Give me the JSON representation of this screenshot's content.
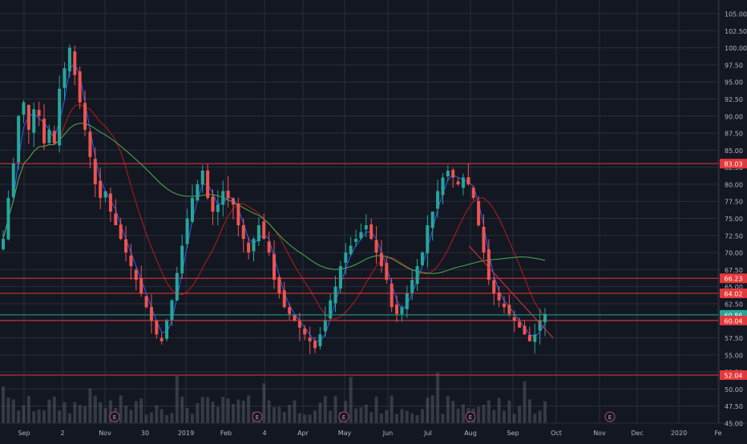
{
  "colors": {
    "background": "#131722",
    "grid": "#2a2e39",
    "axis_text": "#b2b5be",
    "up": "#26a69a",
    "down": "#ef5350",
    "hline": "#e5383b",
    "teal_line": "#26a69a",
    "ma_short": "#2962ff",
    "ma_mid": "#b71c1c",
    "ma_long": "#4caf50",
    "volume": "#787b86"
  },
  "chart_data": {
    "type": "candlestick",
    "instrument": "stock",
    "period": "2018-09 to 2019-09 (daily)",
    "y_axis": {
      "range": [
        45.0,
        107.0
      ],
      "ticks": [
        "105.00",
        "102.50",
        "100.00",
        "97.50",
        "95.00",
        "92.50",
        "90.00",
        "87.50",
        "85.00",
        "82.50",
        "80.00",
        "77.50",
        "75.00",
        "72.50",
        "70.00",
        "67.50",
        "65.00",
        "62.50",
        "60.00",
        "57.50",
        "55.00",
        "52.50",
        "50.00",
        "47.50",
        "45.00"
      ]
    },
    "x_axis": {
      "ticks": [
        "Sep",
        "2",
        "Nov",
        "30",
        "2019",
        "Feb",
        "4",
        "Apr",
        "May",
        "Jun",
        "Jul",
        "Aug",
        "Sep",
        "Oct",
        "Nov",
        "Dec",
        "2020",
        "Fe"
      ]
    },
    "price_levels": [
      {
        "label": "83.03",
        "value": 83.03,
        "color": "#e5383b"
      },
      {
        "label": "66.23",
        "value": 66.23,
        "color": "#e5383b"
      },
      {
        "label": "64.02",
        "value": 64.02,
        "color": "#e5383b"
      },
      {
        "label": "60.86",
        "value": 60.86,
        "color": "#26a69a"
      },
      {
        "label": "60.04",
        "value": 60.04,
        "color": "#e5383b"
      },
      {
        "label": "52.04",
        "value": 52.04,
        "color": "#e5383b"
      }
    ],
    "trendline": {
      "start_date": "2019-08-01",
      "start_value": 71.0,
      "end_date": "2019-09-27",
      "end_value": 57.5
    },
    "earnings_markers": {
      "label": "E",
      "dates": [
        "2018-11-05",
        "2019-02-28",
        "2019-05-02",
        "2019-07-31",
        "2019-10-31"
      ]
    },
    "candles_compact": [
      {
        "start": "2018-09-01",
        "closes": [
          72,
          78,
          83,
          90,
          92,
          88,
          91,
          90,
          86,
          88,
          86,
          94,
          97,
          100,
          96,
          92,
          88,
          84,
          80,
          78,
          79,
          76,
          74,
          72,
          70,
          68,
          66,
          64,
          62,
          60,
          58,
          57,
          60,
          63,
          67,
          71,
          75,
          78,
          80,
          82,
          78,
          76,
          77,
          79,
          78,
          77,
          74,
          72,
          70,
          72,
          74,
          72,
          70,
          66,
          64,
          62,
          61,
          60,
          59,
          58,
          57,
          56,
          58,
          60,
          63,
          65,
          68,
          70,
          71,
          72,
          73,
          74,
          72,
          70,
          68,
          66,
          62,
          61,
          62,
          64,
          66,
          68,
          70,
          74,
          76,
          79,
          81,
          82,
          81,
          80,
          81,
          80,
          78,
          74,
          70,
          66,
          64,
          63,
          62,
          61,
          60,
          59,
          58,
          57,
          58,
          60,
          61
        ]
      }
    ],
    "moving_averages": [
      {
        "name": "MA short",
        "color": "#2962ff"
      },
      {
        "name": "MA mid",
        "color": "#b71c1c"
      },
      {
        "name": "MA long",
        "color": "#4caf50"
      }
    ]
  }
}
